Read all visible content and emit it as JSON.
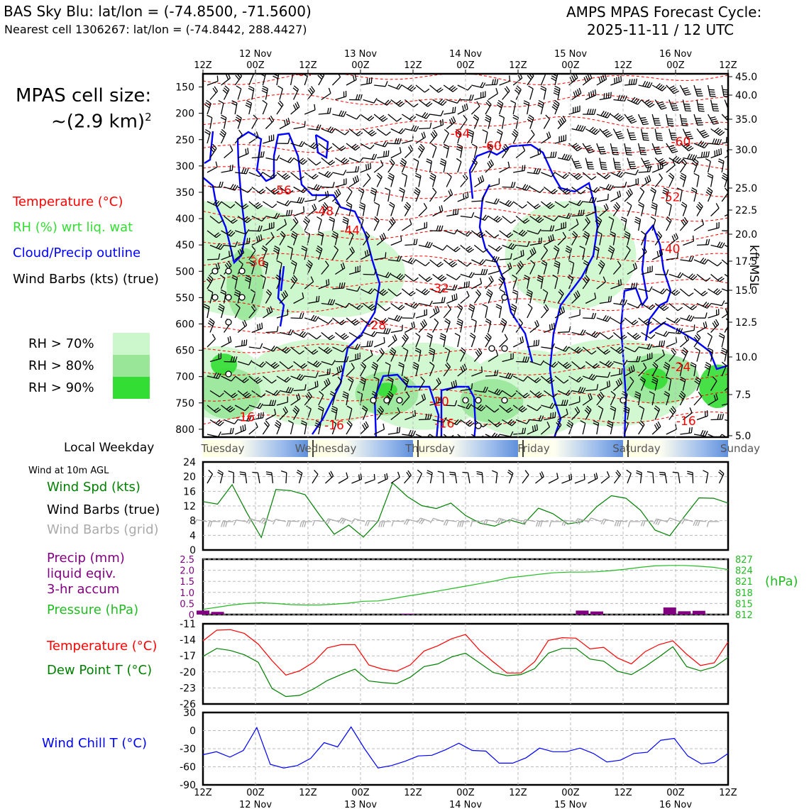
{
  "header": {
    "title": "BAS Sky Blu: lat/lon = (-74.8500, -71.5600)",
    "subtitle": "Nearest cell 1306267: lat/lon = (-74.8442, 288.4427)",
    "cycle_line1": "AMPS MPAS Forecast Cycle:",
    "cycle_line2": "2025-11-11 / 12 UTC"
  },
  "cell_size": {
    "label": "MPAS cell size:",
    "value": "~(2.9 km)",
    "sup": "2"
  },
  "legend": {
    "temperature": "Temperature (°C)",
    "rh": "RH (%) wrt liq. wat",
    "cloud": "Cloud/Precip outline",
    "barbs": "Wind Barbs (kts) (true)",
    "rh70": "RH > 70%",
    "rh80": "RH > 80%",
    "rh90": "RH > 90%"
  },
  "colors": {
    "rh70": "#ccf7cc",
    "rh80": "#99e699",
    "rh90": "#33dd33",
    "temp": "#ff0000",
    "cloud": "#0000ff",
    "green": "#008000",
    "pressure": "#22bb22",
    "precip": "#800080",
    "grid": "#bbbbbb",
    "weekday_band": "#6f9fe0"
  },
  "time_axis": {
    "top_dates": [
      "12 Nov",
      "13 Nov",
      "14 Nov",
      "15 Nov",
      "16 Nov"
    ],
    "ticks": [
      "12Z",
      "00Z",
      "12Z",
      "00Z",
      "12Z",
      "00Z",
      "12Z",
      "00Z",
      "12Z",
      "00Z",
      "12Z"
    ]
  },
  "weekday": {
    "label": "Local Weekday",
    "days": [
      "Tuesday",
      "Wednesday",
      "Thursday",
      "Friday",
      "Saturday",
      "Sunday"
    ]
  },
  "labels": {
    "wind10m": "Wind at 10m AGL",
    "wind_spd": "Wind Spd (kts)",
    "barbs_true": "Wind Barbs (true)",
    "barbs_grid": "Wind Barbs (grid)",
    "precip1": "Precip (mm)",
    "precip2": "liquid eqiv.",
    "precip3": "3-hr accum",
    "pressure": "Pressure (hPa)",
    "hpa": "(hPa)",
    "temp": "Temperature (°C)",
    "dew": "Dew Point T (°C)",
    "windchill": "Wind Chill T (°C)",
    "kft": "kft MSL"
  },
  "chart_data": [
    {
      "type": "heatmap",
      "name": "cross-section",
      "y_pressure_ticks": [
        "150",
        "200",
        "250",
        "300",
        "350",
        "400",
        "450",
        "500",
        "550",
        "600",
        "650",
        "700",
        "750",
        "800"
      ],
      "y_kft_ticks": [
        "45.0",
        "40.0",
        "35.0",
        "30.0",
        "25.0",
        "22.5",
        "20.0",
        "17.5",
        "15.0",
        "12.5",
        "10.0",
        "7.5",
        "5.0"
      ],
      "temp_labels": [
        {
          "t": 0.19,
          "p": 129,
          "v": "-64"
        },
        {
          "t": 0.49,
          "p": 246,
          "v": "-64"
        },
        {
          "t": 0.55,
          "p": 270,
          "v": "-60"
        },
        {
          "t": 0.91,
          "p": 262,
          "v": "-60"
        },
        {
          "t": 0.15,
          "p": 354,
          "v": "-56"
        },
        {
          "t": 0.89,
          "p": 367,
          "v": "-52"
        },
        {
          "t": 0.23,
          "p": 394,
          "v": "-48"
        },
        {
          "t": 0.28,
          "p": 430,
          "v": "-44"
        },
        {
          "t": 0.89,
          "p": 465,
          "v": "-40"
        },
        {
          "t": 0.1,
          "p": 490,
          "v": "-36"
        },
        {
          "t": 0.45,
          "p": 540,
          "v": "-32"
        },
        {
          "t": 0.33,
          "p": 610,
          "v": "-28"
        },
        {
          "t": 0.91,
          "p": 690,
          "v": "-24"
        },
        {
          "t": 0.45,
          "p": 755,
          "v": "-20"
        },
        {
          "t": 0.08,
          "p": 785,
          "v": "-16"
        },
        {
          "t": 0.25,
          "p": 800,
          "v": "-16"
        },
        {
          "t": 0.46,
          "p": 797,
          "v": "-16"
        },
        {
          "t": 0.92,
          "p": 792,
          "v": "-16"
        }
      ]
    },
    {
      "type": "line",
      "name": "wind-speed",
      "ylabel": "Wind Spd (kts)",
      "ylim": [
        0,
        24
      ],
      "yticks": [
        "0",
        "4",
        "8",
        "12",
        "16",
        "20",
        "24"
      ],
      "values": [
        13.2,
        12.5,
        17.8,
        10.2,
        3.4,
        16.5,
        16.2,
        15.1,
        9.5,
        4.3,
        6.8,
        3.5,
        7.8,
        18.3,
        14.6,
        12.1,
        11.3,
        12.8,
        9.4,
        7.3,
        6.5,
        8.2,
        7.1,
        11.4,
        9.9,
        7.1,
        7.7,
        11.8,
        14.8,
        14.1,
        10.8,
        5.4,
        3.9,
        9.1,
        14.2,
        14.1,
        12.8
      ]
    },
    {
      "type": "line",
      "name": "precip-pressure",
      "precip_ylim": [
        0,
        2.5
      ],
      "precip_yticks": [
        "0",
        "0.5",
        "1.0",
        "1.5",
        "2.0",
        "2.5"
      ],
      "precip_bars": [
        0.18,
        0.12,
        0,
        0,
        0,
        0,
        0,
        0,
        0,
        0,
        0,
        0,
        0,
        0,
        0.03,
        0,
        0,
        0,
        0,
        0,
        0,
        0,
        0,
        0,
        0,
        0,
        0.18,
        0.14,
        0,
        0,
        0,
        0,
        0.32,
        0.15,
        0.17,
        0,
        0
      ],
      "pressure_ylim": [
        812,
        827
      ],
      "pressure_yticks": [
        "812",
        "815",
        "818",
        "821",
        "824",
        "827"
      ],
      "pressure": [
        813.4,
        814.0,
        814.6,
        815.0,
        815.2,
        815.0,
        814.7,
        814.6,
        814.6,
        814.8,
        815.1,
        815.6,
        815.7,
        816.3,
        817.0,
        817.6,
        818.3,
        819.0,
        819.7,
        820.4,
        821.1,
        822.0,
        822.4,
        822.9,
        823.3,
        823.5,
        823.5,
        823.6,
        823.9,
        824.3,
        824.8,
        825.2,
        825.3,
        825.3,
        825.1,
        824.8,
        824.2
      ]
    },
    {
      "type": "line",
      "name": "temperature-dewpoint",
      "ylim": [
        -26,
        -11
      ],
      "yticks": [
        "-26",
        "-23",
        "-20",
        "-17",
        "-14",
        "-11"
      ],
      "series": [
        {
          "name": "Temperature (°C)",
          "values": [
            -14.2,
            -12.2,
            -12.1,
            -12.8,
            -14.8,
            -17.9,
            -20.6,
            -19.8,
            -18.2,
            -15.5,
            -14.9,
            -14.9,
            -18.7,
            -19.5,
            -19.9,
            -18.7,
            -16.1,
            -15.1,
            -13.8,
            -13.0,
            -15.9,
            -18.1,
            -20.2,
            -20.2,
            -18.1,
            -14.1,
            -13.6,
            -13.7,
            -15.7,
            -15.4,
            -17.4,
            -18.5,
            -16.2,
            -14.9,
            -14.2,
            -16.7,
            -18.8,
            -18.3,
            -14.4
          ]
        },
        {
          "name": "Dew Point T (°C)",
          "values": [
            -17.1,
            -15.6,
            -16.0,
            -16.8,
            -18.2,
            -23.1,
            -24.6,
            -24.4,
            -23.2,
            -21.6,
            -20.5,
            -19.5,
            -21.7,
            -22.0,
            -22.2,
            -21.0,
            -19.0,
            -18.5,
            -17.2,
            -16.5,
            -18.3,
            -20.1,
            -20.7,
            -20.5,
            -19.4,
            -16.5,
            -15.6,
            -15.6,
            -17.6,
            -18.0,
            -19.9,
            -20.5,
            -19.0,
            -17.2,
            -15.3,
            -19.0,
            -19.8,
            -19.1,
            -17.3
          ]
        }
      ]
    },
    {
      "type": "line",
      "name": "wind-chill",
      "ylim": [
        -90,
        30
      ],
      "yticks": [
        "-90",
        "-60",
        "-30",
        "0",
        "30"
      ],
      "values": [
        -40,
        -35,
        -44,
        -33,
        5,
        -56,
        -62,
        -58,
        -46,
        -20,
        -27,
        6,
        -30,
        -62,
        -58,
        -51,
        -42,
        -41,
        -32,
        -21,
        -33,
        -34,
        -54,
        -54,
        -45,
        -29,
        -35,
        -35,
        -29,
        -38,
        -52,
        -49,
        -38,
        -36,
        -16,
        -13,
        -42,
        -55,
        -53,
        -38
      ]
    }
  ]
}
